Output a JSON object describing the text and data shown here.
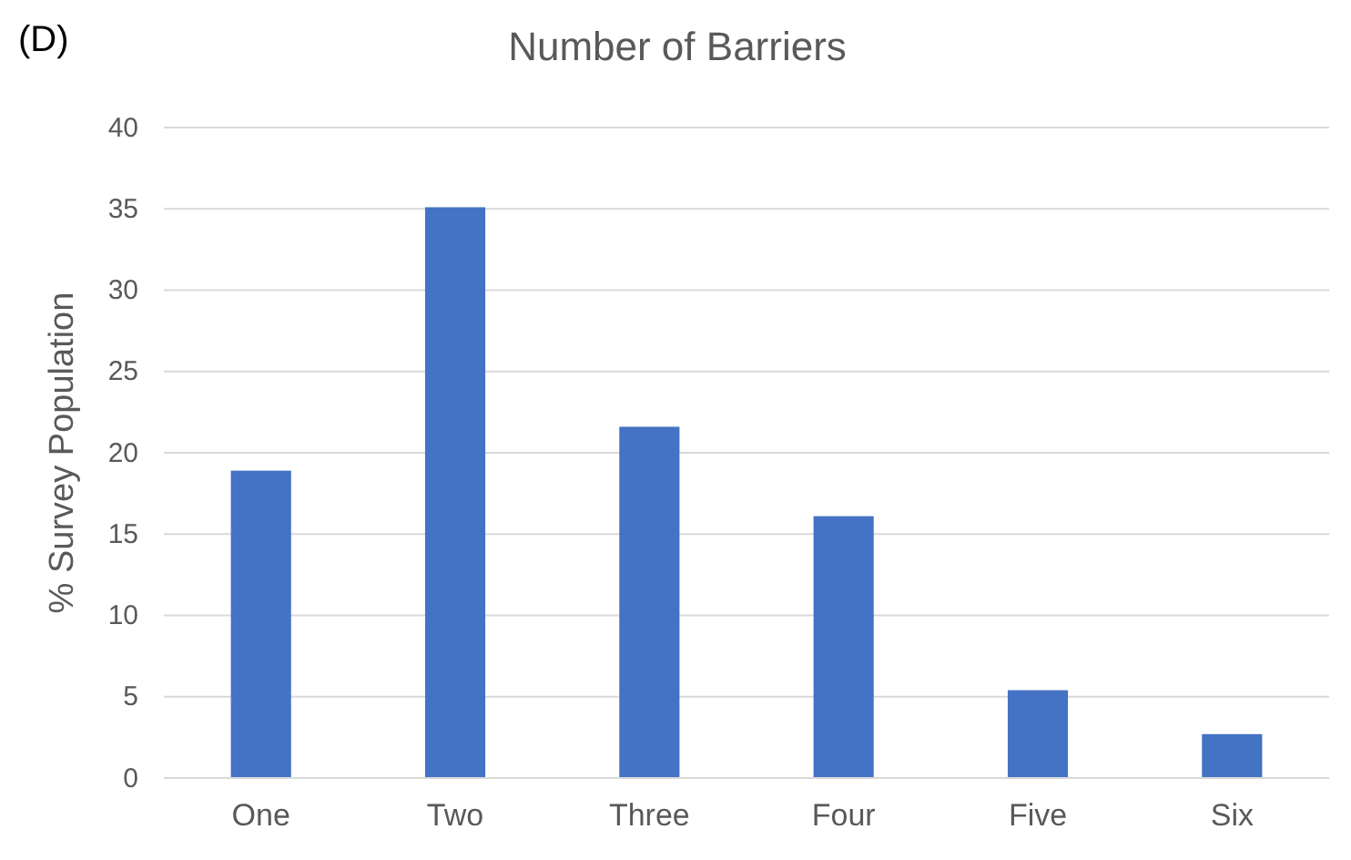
{
  "chart_data": {
    "type": "bar",
    "title": "Number of Barriers",
    "ylabel": "% Survey Population",
    "annotations": [
      "(D)"
    ],
    "categories": [
      "One",
      "Two",
      "Three",
      "Four",
      "Five",
      "Six"
    ],
    "values": [
      18.9,
      35.1,
      21.6,
      16.1,
      5.4,
      2.7
    ],
    "color": "#4472c4",
    "ylim": [
      0,
      40
    ],
    "yticks": [
      0,
      5,
      10,
      15,
      20,
      25,
      30,
      35,
      40
    ],
    "grid": "y"
  }
}
